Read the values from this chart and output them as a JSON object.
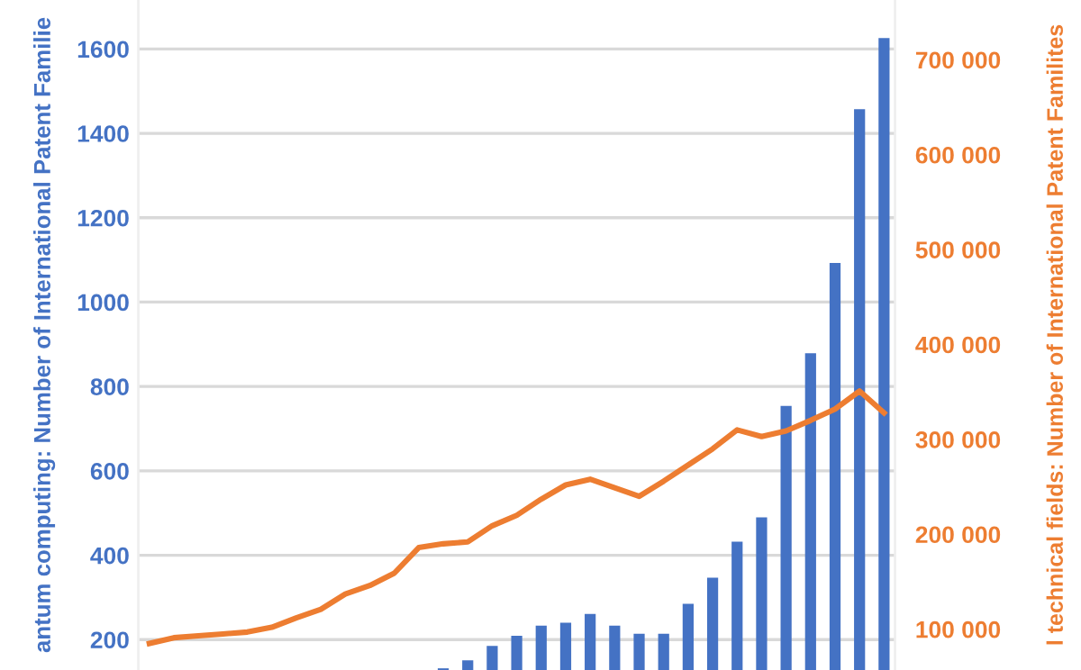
{
  "chart_data": {
    "type": "bar",
    "categories": [
      null,
      null,
      null,
      null,
      null,
      null,
      null,
      null,
      null,
      null,
      null,
      null,
      null,
      null,
      null,
      null,
      null,
      null,
      null,
      null,
      null,
      null,
      null,
      null,
      null,
      null,
      null,
      null,
      null,
      null,
      null
    ],
    "series": [
      {
        "color": "#4472c4",
        "values": [
          null,
          null,
          null,
          null,
          null,
          null,
          null,
          null,
          null,
          null,
          null,
          null,
          132,
          151,
          185,
          209,
          233,
          240,
          261,
          233,
          214,
          214,
          285,
          347,
          432,
          490,
          754,
          879,
          1093,
          1457,
          1626
        ]
      },
      {
        "type": "line",
        "axis": "y2",
        "color": "#ed7d31",
        "values": [
          85000,
          91000,
          93000,
          95000,
          97000,
          102000,
          112000,
          121000,
          137000,
          146000,
          159000,
          186000,
          190000,
          192000,
          209000,
          220000,
          237000,
          252000,
          258000,
          249000,
          240000,
          256000,
          273000,
          290000,
          310000,
          303000,
          309000,
          320000,
          332000,
          351000,
          328000
        ]
      }
    ],
    "ylabel": "antum computing: Number of International Patent Familie",
    "y2label": "l technical fields: Number of International Patent Familites",
    "ylim": [
      128,
      1716
    ],
    "yticks": [
      200,
      400,
      600,
      800,
      1000,
      1200,
      1400,
      1600
    ],
    "y2lim": [
      57000,
      763000
    ],
    "y2ticks": [
      {
        "value": 100000,
        "label": "100 000"
      },
      {
        "value": 200000,
        "label": "200 000"
      },
      {
        "value": 300000,
        "label": "300 000"
      },
      {
        "value": 400000,
        "label": "400 000"
      },
      {
        "value": 500000,
        "label": "500 000"
      },
      {
        "value": 600000,
        "label": "600 000"
      },
      {
        "value": 700000,
        "label": "700 000"
      }
    ],
    "grid": "y",
    "tick_labels": "y"
  }
}
